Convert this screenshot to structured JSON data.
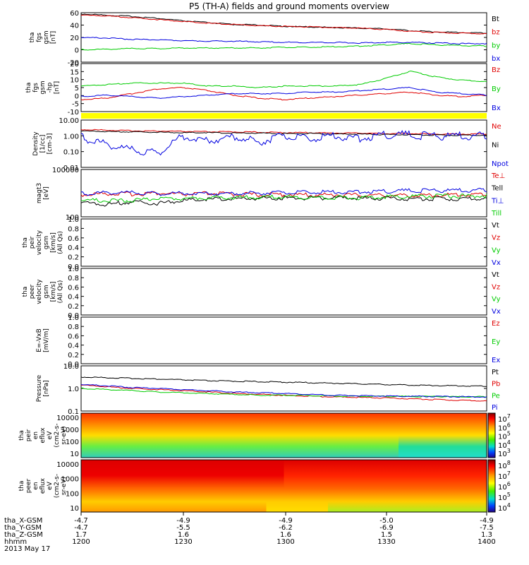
{
  "title": "P5 (TH-A) fields and ground moments overview",
  "colors": {
    "black": "#000000",
    "red": "#e00000",
    "green": "#00cc00",
    "blue": "#0000e0",
    "yellow": "#ffff00"
  },
  "chart_data": [
    {
      "type": "line",
      "id": "fgs_gsm",
      "ylabel": [
        "tha",
        "fgs",
        "gsm",
        "[nT]"
      ],
      "ylim": [
        -20,
        60
      ],
      "yticks": [
        "60",
        "40",
        "20",
        "0",
        "-20"
      ],
      "series": [
        {
          "name": "Bt",
          "color": "black",
          "values": [
            58,
            56,
            54,
            51,
            47,
            44,
            41,
            40,
            38,
            37,
            36,
            35,
            34,
            31,
            29,
            28,
            27
          ]
        },
        {
          "name": "bz",
          "color": "red",
          "values": [
            56,
            55,
            52,
            49,
            46,
            43,
            41,
            39,
            38,
            37,
            36,
            35,
            33,
            30,
            28,
            27,
            26
          ]
        },
        {
          "name": "by",
          "color": "green",
          "values": [
            0,
            1,
            2,
            2,
            3,
            3,
            3,
            3,
            4,
            4,
            5,
            6,
            8,
            10,
            8,
            7,
            6
          ]
        },
        {
          "name": "bx",
          "color": "blue",
          "values": [
            20,
            19,
            17,
            16,
            15,
            14,
            14,
            13,
            12,
            12,
            12,
            11,
            12,
            12,
            11,
            10,
            10
          ]
        }
      ]
    },
    {
      "type": "line",
      "id": "fgs_hp",
      "ylabel": [
        "tha",
        "fgs",
        "gsm",
        "-hp",
        "[nT]"
      ],
      "ylim": [
        -12,
        20
      ],
      "yticks": [
        "20",
        "15",
        "10",
        "5",
        "0",
        "-5",
        "-10"
      ],
      "series": [
        {
          "name": "Bz",
          "color": "red",
          "values": [
            -4,
            -3,
            0,
            3,
            4,
            2,
            -1,
            -3,
            -4,
            -3,
            -2,
            -1,
            0,
            1,
            -1,
            -2,
            -1
          ]
        },
        {
          "name": "By",
          "color": "green",
          "values": [
            5,
            6,
            7,
            7,
            7,
            5,
            5,
            4,
            5,
            5,
            5,
            6,
            10,
            15,
            11,
            9,
            8
          ]
        },
        {
          "name": "Bx",
          "color": "blue",
          "values": [
            -2,
            -1,
            -2,
            -3,
            -2,
            -1,
            0,
            0,
            0,
            1,
            1,
            2,
            3,
            4,
            1,
            0,
            -1
          ]
        }
      ]
    },
    {
      "type": "line",
      "id": "density",
      "log": true,
      "ylabel": [
        "Density",
        "[1/cc]",
        "[cm-3]"
      ],
      "ylim": [
        0.01,
        10
      ],
      "yticks": [
        "10.00",
        "1.00",
        "0.10",
        "0.01"
      ],
      "series": [
        {
          "name": "Ne",
          "color": "red",
          "values": [
            2.5,
            2.3,
            2.1,
            2.0,
            1.9,
            1.8,
            1.8,
            1.7,
            1.6,
            1.6,
            1.5,
            1.5,
            1.4,
            1.4,
            1.3,
            1.3,
            1.3
          ]
        },
        {
          "name": "Ni",
          "color": "black",
          "values": [
            2.0,
            1.9,
            1.8,
            1.7,
            1.6,
            1.6,
            1.5,
            1.5,
            1.4,
            1.4,
            1.3,
            1.3,
            1.2,
            1.2,
            1.1,
            1.1,
            1.1
          ]
        },
        {
          "name": "Npot",
          "color": "blue",
          "values": [
            0.8,
            0.3,
            0.12,
            0.08,
            1.0,
            0.5,
            0.9,
            0.4,
            1.0,
            0.6,
            1.0,
            0.7,
            1.2,
            1.1,
            1.0,
            1.0,
            1.0
          ]
        }
      ]
    },
    {
      "type": "line",
      "id": "temperature",
      "log": true,
      "ylabel": [
        "magt3",
        "[eV]"
      ],
      "ylim": [
        100,
        100000
      ],
      "yticks": [
        "100000",
        "100"
      ],
      "series": [
        {
          "name": "Te⊥",
          "color": "red",
          "values": [
            2500,
            3000,
            2800,
            3200,
            2600,
            3000,
            2800,
            2500,
            2600,
            2400,
            2500,
            2400,
            2300,
            2200,
            2400,
            2500,
            2600
          ]
        },
        {
          "name": "Tell",
          "color": "black",
          "values": [
            800,
            600,
            900,
            700,
            1100,
            1300,
            1400,
            1500,
            1600,
            1500,
            1600,
            1500,
            1500,
            1400,
            1400,
            1400,
            1500
          ]
        },
        {
          "name": "Ti⊥",
          "color": "blue",
          "values": [
            2800,
            3500,
            3300,
            3000,
            3200,
            3100,
            3000,
            3200,
            3400,
            3500,
            3700,
            3900,
            4200,
            4500,
            4700,
            4800,
            5000
          ]
        },
        {
          "name": "Till",
          "color": "green",
          "values": [
            1200,
            1000,
            1100,
            1400,
            1500,
            1600,
            1700,
            1700,
            1800,
            1700,
            1700,
            1600,
            1800,
            2000,
            2100,
            2100,
            2100
          ]
        }
      ]
    },
    {
      "type": "line",
      "id": "peir_vel",
      "ylabel": [
        "tha",
        "peir",
        "velocity",
        "gsm",
        "[km/s]",
        "(All Qs)"
      ],
      "ylim": [
        0,
        1
      ],
      "yticks": [
        "1.0",
        "0.8",
        "0.6",
        "0.4",
        "0.2",
        "0.0"
      ],
      "series": [
        {
          "name": "Vt",
          "color": "black"
        },
        {
          "name": "Vz",
          "color": "red"
        },
        {
          "name": "Vy",
          "color": "green"
        },
        {
          "name": "Vx",
          "color": "blue"
        }
      ]
    },
    {
      "type": "line",
      "id": "peer_vel",
      "ylabel": [
        "tha",
        "peer",
        "velocity",
        "gsm",
        "[km/s]",
        "(All Qs)"
      ],
      "ylim": [
        0,
        1
      ],
      "yticks": [
        "1.0",
        "0.8",
        "0.6",
        "0.4",
        "0.2",
        "0.0"
      ],
      "series": [
        {
          "name": "Vt",
          "color": "black"
        },
        {
          "name": "Vz",
          "color": "red"
        },
        {
          "name": "Vy",
          "color": "green"
        },
        {
          "name": "Vx",
          "color": "blue"
        }
      ]
    },
    {
      "type": "line",
      "id": "exb",
      "ylabel": [
        "E=-VxB",
        "[mV/m]"
      ],
      "ylim": [
        0,
        1
      ],
      "yticks": [
        "1.0",
        "0.8",
        "0.6",
        "0.4",
        "0.2",
        "0.0"
      ],
      "series": [
        {
          "name": "Ez",
          "color": "red"
        },
        {
          "name": "Ey",
          "color": "green"
        },
        {
          "name": "Ex",
          "color": "blue"
        }
      ]
    },
    {
      "type": "line",
      "id": "pressure",
      "log": true,
      "ylabel": [
        "Pressure",
        "[nPa]"
      ],
      "ylim": [
        0.1,
        10
      ],
      "yticks": [
        "10.0",
        "1.0",
        "0.1"
      ],
      "series": [
        {
          "name": "Pt",
          "color": "black",
          "values": [
            3.2,
            3.0,
            2.8,
            2.6,
            2.4,
            2.2,
            2.1,
            2.0,
            1.9,
            1.8,
            1.7,
            1.6,
            1.5,
            1.4,
            1.35,
            1.3,
            1.25
          ]
        },
        {
          "name": "Pb",
          "color": "red",
          "values": [
            1.4,
            1.2,
            1.0,
            0.9,
            0.8,
            0.7,
            0.6,
            0.55,
            0.5,
            0.45,
            0.42,
            0.4,
            0.38,
            0.35,
            0.32,
            0.3,
            0.28
          ]
        },
        {
          "name": "Pe",
          "color": "green",
          "values": [
            1.0,
            0.9,
            0.8,
            0.7,
            0.65,
            0.6,
            0.55,
            0.5,
            0.5,
            0.48,
            0.46,
            0.45,
            0.45,
            0.44,
            0.44,
            0.43,
            0.43
          ]
        },
        {
          "name": "Pi",
          "color": "blue",
          "values": [
            1.5,
            1.3,
            1.1,
            1.0,
            0.9,
            0.8,
            0.7,
            0.65,
            0.6,
            0.55,
            0.5,
            0.48,
            0.46,
            0.45,
            0.44,
            0.43,
            0.42
          ]
        }
      ]
    },
    {
      "type": "heatmap",
      "id": "peir_spec",
      "ylabel": [
        "tha",
        "peir",
        "en",
        "eflux",
        "eV",
        "(cm2-s-",
        "sr-eV)"
      ],
      "yticks": [
        "10000",
        "1000",
        "100",
        "10"
      ],
      "cbar_ticks": [
        "10^7",
        "10^6",
        "10^5",
        "10^4",
        "10^3"
      ]
    },
    {
      "type": "heatmap",
      "id": "peer_spec",
      "ylabel": [
        "tha",
        "peer",
        "en",
        "eflux",
        "eV",
        "(cm2-s-",
        "sr-eV)"
      ],
      "yticks": [
        "10000",
        "1000",
        "100",
        "10"
      ],
      "cbar_ticks": [
        "10^8",
        "10^7",
        "10^6",
        "10^5",
        "10^4"
      ]
    }
  ],
  "yellow_bar": true,
  "footer": {
    "labels": [
      "tha_X-GSM",
      "tha_Y-GSM",
      "tha_Z-GSM",
      "hhmm",
      "2013 May 17"
    ],
    "columns": [
      [
        "-4.7",
        "-4.7",
        "1.7",
        "1200"
      ],
      [
        "-4.9",
        "-5.5",
        "1.6",
        "1230"
      ],
      [
        "-4.9",
        "-6.2",
        "1.6",
        "1300"
      ],
      [
        "-5.0",
        "-6.9",
        "1.5",
        "1330"
      ],
      [
        "-4.9",
        "-7.5",
        "1.3",
        "1400"
      ]
    ]
  }
}
